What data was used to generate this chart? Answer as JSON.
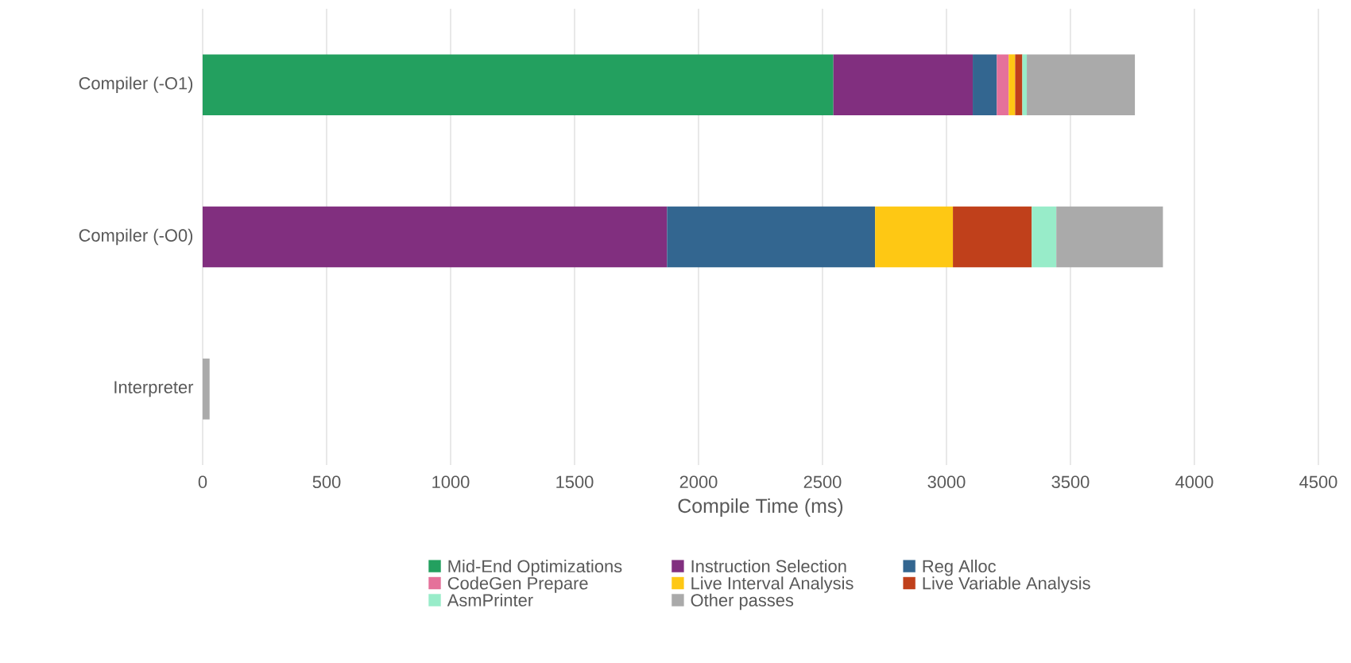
{
  "chart_data": {
    "type": "bar",
    "orientation": "horizontal",
    "stacked": true,
    "xlabel": "Compile Time (ms)",
    "categories": [
      "Compiler (-O1)",
      "Compiler (-O0)",
      "Interpreter"
    ],
    "series": [
      {
        "name": "Mid-End Optimizations",
        "color": "#23a05f",
        "values": [
          2544,
          null,
          null
        ]
      },
      {
        "name": "Instruction Selection",
        "color": "#812f7f",
        "values": [
          562,
          1873,
          null
        ]
      },
      {
        "name": "Reg Alloc",
        "color": "#336690",
        "values": [
          97,
          839,
          null
        ]
      },
      {
        "name": "CodeGen Prepare",
        "color": "#e5719a",
        "values": [
          48,
          null,
          null
        ]
      },
      {
        "name": "Live Interval Analysis",
        "color": "#fec814",
        "values": [
          26,
          314,
          null
        ]
      },
      {
        "name": "Live Variable Analysis",
        "color": "#c0401b",
        "values": [
          29,
          318,
          null
        ]
      },
      {
        "name": "AsmPrinter",
        "color": "#98ecc9",
        "values": [
          18,
          99,
          null
        ]
      },
      {
        "name": "Other passes",
        "color": "#aaaaaa",
        "values": [
          436,
          430,
          28
        ]
      }
    ],
    "xlim": [
      0,
      4500
    ],
    "xticks": [
      0,
      500,
      1000,
      1500,
      2000,
      2500,
      3000,
      3500,
      4000,
      4500
    ],
    "grid": "x",
    "legend": "bottom"
  }
}
